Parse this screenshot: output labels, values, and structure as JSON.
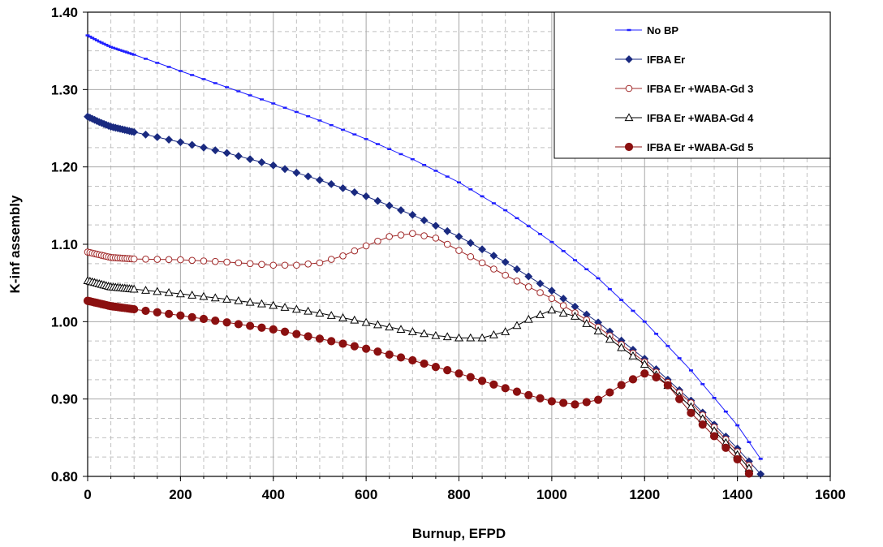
{
  "chart_data": {
    "type": "line",
    "title": "",
    "xlabel": "Burnup, EFPD",
    "ylabel": "K-inf assembly",
    "xlim": [
      0,
      1600
    ],
    "ylim": [
      0.8,
      1.4
    ],
    "xticks": [
      0,
      200,
      400,
      600,
      800,
      1000,
      1200,
      1400,
      1600
    ],
    "xtick_labels": [
      "0",
      "200",
      "400",
      "600",
      "800",
      "1000",
      "1200",
      "1400",
      "1600"
    ],
    "yticks": [
      0.8,
      0.9,
      1.0,
      1.1,
      1.2,
      1.3,
      1.4
    ],
    "ytick_labels": [
      "0.80",
      "0.90",
      "1.00",
      "1.10",
      "1.20",
      "1.30",
      "1.40"
    ],
    "grid": true,
    "legend_position": "top-right",
    "series": [
      {
        "name": "No BP",
        "color": "#1f1fff",
        "marker": "dash",
        "points": [
          [
            0,
            1.37
          ],
          [
            25,
            1.362
          ],
          [
            50,
            1.355
          ],
          [
            100,
            1.345
          ],
          [
            200,
            1.324
          ],
          [
            300,
            1.303
          ],
          [
            400,
            1.282
          ],
          [
            500,
            1.26
          ],
          [
            600,
            1.236
          ],
          [
            700,
            1.21
          ],
          [
            800,
            1.18
          ],
          [
            900,
            1.144
          ],
          [
            1000,
            1.103
          ],
          [
            1100,
            1.056
          ],
          [
            1200,
            1.0
          ],
          [
            1300,
            0.937
          ],
          [
            1400,
            0.866
          ],
          [
            1460,
            0.814
          ]
        ]
      },
      {
        "name": "IFBA Er",
        "color": "#1a2a80",
        "marker": "diamond",
        "points": [
          [
            0,
            1.265
          ],
          [
            25,
            1.258
          ],
          [
            50,
            1.252
          ],
          [
            100,
            1.245
          ],
          [
            200,
            1.232
          ],
          [
            300,
            1.218
          ],
          [
            400,
            1.202
          ],
          [
            500,
            1.183
          ],
          [
            600,
            1.162
          ],
          [
            700,
            1.138
          ],
          [
            800,
            1.11
          ],
          [
            900,
            1.077
          ],
          [
            1000,
            1.04
          ],
          [
            1100,
            0.999
          ],
          [
            1200,
            0.952
          ],
          [
            1300,
            0.898
          ],
          [
            1400,
            0.836
          ],
          [
            1450,
            0.803
          ]
        ]
      },
      {
        "name": "IFBA Er +WABA-Gd 3",
        "color": "#a02828",
        "marker": "circle-open",
        "points": [
          [
            0,
            1.09
          ],
          [
            50,
            1.083
          ],
          [
            100,
            1.081
          ],
          [
            200,
            1.08
          ],
          [
            300,
            1.077
          ],
          [
            400,
            1.073
          ],
          [
            450,
            1.073
          ],
          [
            500,
            1.076
          ],
          [
            550,
            1.085
          ],
          [
            600,
            1.098
          ],
          [
            650,
            1.11
          ],
          [
            700,
            1.114
          ],
          [
            750,
            1.108
          ],
          [
            800,
            1.092
          ],
          [
            850,
            1.076
          ],
          [
            900,
            1.06
          ],
          [
            1000,
            1.03
          ],
          [
            1100,
            0.993
          ],
          [
            1200,
            0.948
          ],
          [
            1300,
            0.895
          ],
          [
            1400,
            0.832
          ],
          [
            1445,
            0.8
          ]
        ]
      },
      {
        "name": "IFBA Er +WABA-Gd 4",
        "color": "#000000",
        "marker": "triangle-open",
        "points": [
          [
            0,
            1.053
          ],
          [
            50,
            1.045
          ],
          [
            100,
            1.042
          ],
          [
            200,
            1.036
          ],
          [
            300,
            1.029
          ],
          [
            400,
            1.021
          ],
          [
            500,
            1.011
          ],
          [
            600,
            0.999
          ],
          [
            700,
            0.987
          ],
          [
            750,
            0.982
          ],
          [
            800,
            0.979
          ],
          [
            850,
            0.979
          ],
          [
            900,
            0.987
          ],
          [
            950,
            1.003
          ],
          [
            1000,
            1.015
          ],
          [
            1050,
            1.007
          ],
          [
            1100,
            0.988
          ],
          [
            1200,
            0.945
          ],
          [
            1300,
            0.89
          ],
          [
            1400,
            0.828
          ],
          [
            1440,
            0.8
          ]
        ]
      },
      {
        "name": "IFBA Er +WABA-Gd 5",
        "color": "#8b1010",
        "marker": "circle-filled",
        "points": [
          [
            0,
            1.027
          ],
          [
            50,
            1.02
          ],
          [
            100,
            1.016
          ],
          [
            200,
            1.008
          ],
          [
            300,
            0.999
          ],
          [
            400,
            0.99
          ],
          [
            500,
            0.978
          ],
          [
            600,
            0.965
          ],
          [
            700,
            0.95
          ],
          [
            800,
            0.933
          ],
          [
            900,
            0.914
          ],
          [
            950,
            0.905
          ],
          [
            1000,
            0.897
          ],
          [
            1050,
            0.893
          ],
          [
            1100,
            0.899
          ],
          [
            1150,
            0.918
          ],
          [
            1200,
            0.933
          ],
          [
            1240,
            0.925
          ],
          [
            1300,
            0.882
          ],
          [
            1400,
            0.822
          ],
          [
            1430,
            0.8
          ]
        ]
      }
    ]
  }
}
